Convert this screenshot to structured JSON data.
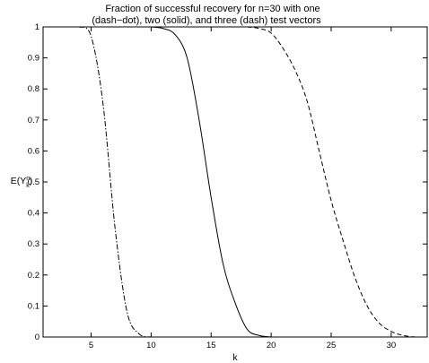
{
  "chart_data": {
    "type": "line",
    "title_lines": [
      "Fraction of successful recovery for n=30 with one",
      "(dash−dot), two (solid), and three (dash) test vectors"
    ],
    "xlabel": "k",
    "ylabel_main": "E(Y",
    "ylabel_sup": "n",
    "ylabel_sub": "k",
    "ylabel_close": ")",
    "xlim": [
      1,
      33
    ],
    "ylim": [
      0,
      1
    ],
    "xticks": [
      5,
      10,
      15,
      20,
      25,
      30
    ],
    "yticks": [
      0,
      0.1,
      0.2,
      0.3,
      0.4,
      0.5,
      0.6,
      0.7,
      0.8,
      0.9,
      1
    ],
    "grid": false,
    "legend": "none",
    "series": [
      {
        "style": "dash-dot",
        "x": [
          4,
          5,
          6,
          7,
          8,
          9,
          10
        ],
        "y": [
          1.0,
          0.97,
          0.75,
          0.35,
          0.08,
          0.01,
          0.0
        ]
      },
      {
        "style": "solid",
        "x": [
          10,
          11,
          12,
          13,
          14,
          15,
          16,
          17,
          18,
          19,
          20
        ],
        "y": [
          1.0,
          0.995,
          0.975,
          0.9,
          0.7,
          0.45,
          0.235,
          0.11,
          0.025,
          0.005,
          0.0
        ]
      },
      {
        "style": "dash",
        "x": [
          18,
          19,
          20,
          21,
          22,
          23,
          24,
          25,
          26,
          27,
          28,
          29,
          30,
          31,
          32
        ],
        "y": [
          1.0,
          0.995,
          0.98,
          0.93,
          0.86,
          0.76,
          0.6,
          0.44,
          0.31,
          0.19,
          0.1,
          0.045,
          0.018,
          0.005,
          0.0
        ]
      }
    ]
  }
}
